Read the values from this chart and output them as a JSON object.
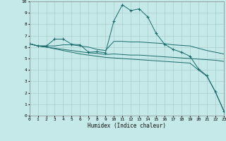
{
  "xlabel": "Humidex (Indice chaleur)",
  "bg_color": "#c5e8e8",
  "grid_color": "#aacece",
  "line_color": "#1a6b6b",
  "xlim": [
    0,
    23
  ],
  "ylim": [
    0,
    10
  ],
  "xticks": [
    0,
    1,
    2,
    3,
    4,
    5,
    6,
    7,
    8,
    9,
    10,
    11,
    12,
    13,
    14,
    15,
    16,
    17,
    18,
    19,
    20,
    21,
    22,
    23
  ],
  "yticks": [
    0,
    1,
    2,
    3,
    4,
    5,
    6,
    7,
    8,
    9,
    10
  ],
  "lines": [
    {
      "x": [
        0,
        1,
        2,
        3,
        4,
        5,
        6,
        7,
        8,
        9,
        10,
        11,
        12,
        13,
        14,
        15,
        16,
        17,
        18,
        19,
        20,
        21,
        22,
        23
      ],
      "y": [
        6.3,
        6.1,
        6.1,
        6.7,
        6.7,
        6.25,
        6.2,
        5.55,
        5.6,
        5.5,
        8.3,
        9.7,
        9.2,
        9.35,
        8.65,
        7.2,
        6.25,
        5.8,
        5.55,
        5.2,
        4.1,
        3.5,
        2.1,
        0.4
      ],
      "marker": true
    },
    {
      "x": [
        0,
        1,
        2,
        3,
        4,
        5,
        6,
        7,
        8,
        9,
        10,
        11,
        12,
        13,
        14,
        15,
        16,
        17,
        18,
        19,
        20,
        21,
        22,
        23
      ],
      "y": [
        6.3,
        6.1,
        6.1,
        6.1,
        6.2,
        6.2,
        6.1,
        6.0,
        5.8,
        5.7,
        6.5,
        6.5,
        6.45,
        6.45,
        6.4,
        6.35,
        6.3,
        6.2,
        6.15,
        6.1,
        5.9,
        5.7,
        5.55,
        5.4
      ],
      "marker": false
    },
    {
      "x": [
        0,
        1,
        2,
        3,
        4,
        5,
        6,
        7,
        8,
        9,
        10,
        11,
        12,
        13,
        14,
        15,
        16,
        17,
        18,
        19,
        20,
        21,
        22,
        23
      ],
      "y": [
        6.3,
        6.1,
        6.0,
        5.9,
        5.8,
        5.7,
        5.6,
        5.5,
        5.45,
        5.35,
        5.4,
        5.35,
        5.3,
        5.3,
        5.25,
        5.2,
        5.15,
        5.1,
        5.05,
        5.0,
        4.95,
        4.9,
        4.85,
        4.75
      ],
      "marker": false
    },
    {
      "x": [
        0,
        1,
        2,
        3,
        4,
        5,
        6,
        7,
        8,
        9,
        10,
        11,
        12,
        13,
        14,
        15,
        16,
        17,
        18,
        19,
        20,
        21,
        22,
        23
      ],
      "y": [
        6.3,
        6.1,
        6.0,
        5.85,
        5.7,
        5.55,
        5.4,
        5.3,
        5.2,
        5.1,
        5.05,
        5.0,
        4.95,
        4.9,
        4.85,
        4.8,
        4.75,
        4.7,
        4.65,
        4.6,
        4.0,
        3.45,
        2.1,
        0.45
      ],
      "marker": false
    }
  ]
}
